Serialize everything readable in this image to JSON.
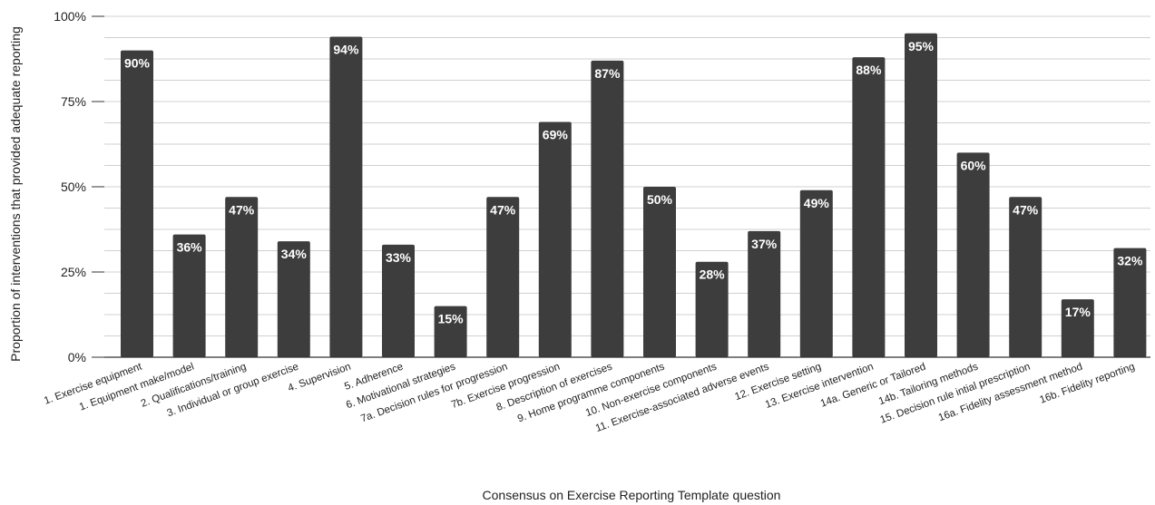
{
  "chart_data": {
    "type": "bar",
    "xlabel": "Consensus on Exercise Reporting Template question",
    "ylabel": "Proportion of interventions that provided adequate reporting",
    "ylim": [
      0,
      100
    ],
    "yticks": [
      "0%",
      "25%",
      "50%",
      "75%",
      "100%"
    ],
    "ytick_values": [
      0,
      25,
      50,
      75,
      100
    ],
    "grid": true,
    "legend": "none",
    "bar_color": "#3d3d3d",
    "categories": [
      "1. Exercise equipment",
      "1. Equipment make/model",
      "2. Qualifications/training",
      "3. Individual or group exercise",
      "4. Supervision",
      "5. Adherence",
      "6. Motivational strategies",
      "7a. Decision rules for progression",
      "7b. Exercise progression",
      "8. Description of exercises",
      "9. Home programme components",
      "10. Non-exercise components",
      "11. Exercise-associated adverse events",
      "12. Exercise setting",
      "13. Exercise intervention",
      "14a. Generic or Tailored",
      "14b. Tailoring methods",
      "15. Decision rule intial prescription",
      "16a. Fidelity assessment method",
      "16b. Fidelity reporting"
    ],
    "values": [
      90,
      36,
      47,
      34,
      94,
      33,
      15,
      47,
      69,
      87,
      50,
      28,
      37,
      49,
      88,
      95,
      60,
      47,
      17,
      32
    ],
    "data_labels": [
      "90%",
      "36%",
      "47%",
      "34%",
      "94%",
      "33%",
      "15%",
      "47%",
      "69%",
      "87%",
      "50%",
      "28%",
      "37%",
      "49%",
      "88%",
      "95%",
      "60%",
      "47%",
      "17%",
      "32%"
    ]
  }
}
